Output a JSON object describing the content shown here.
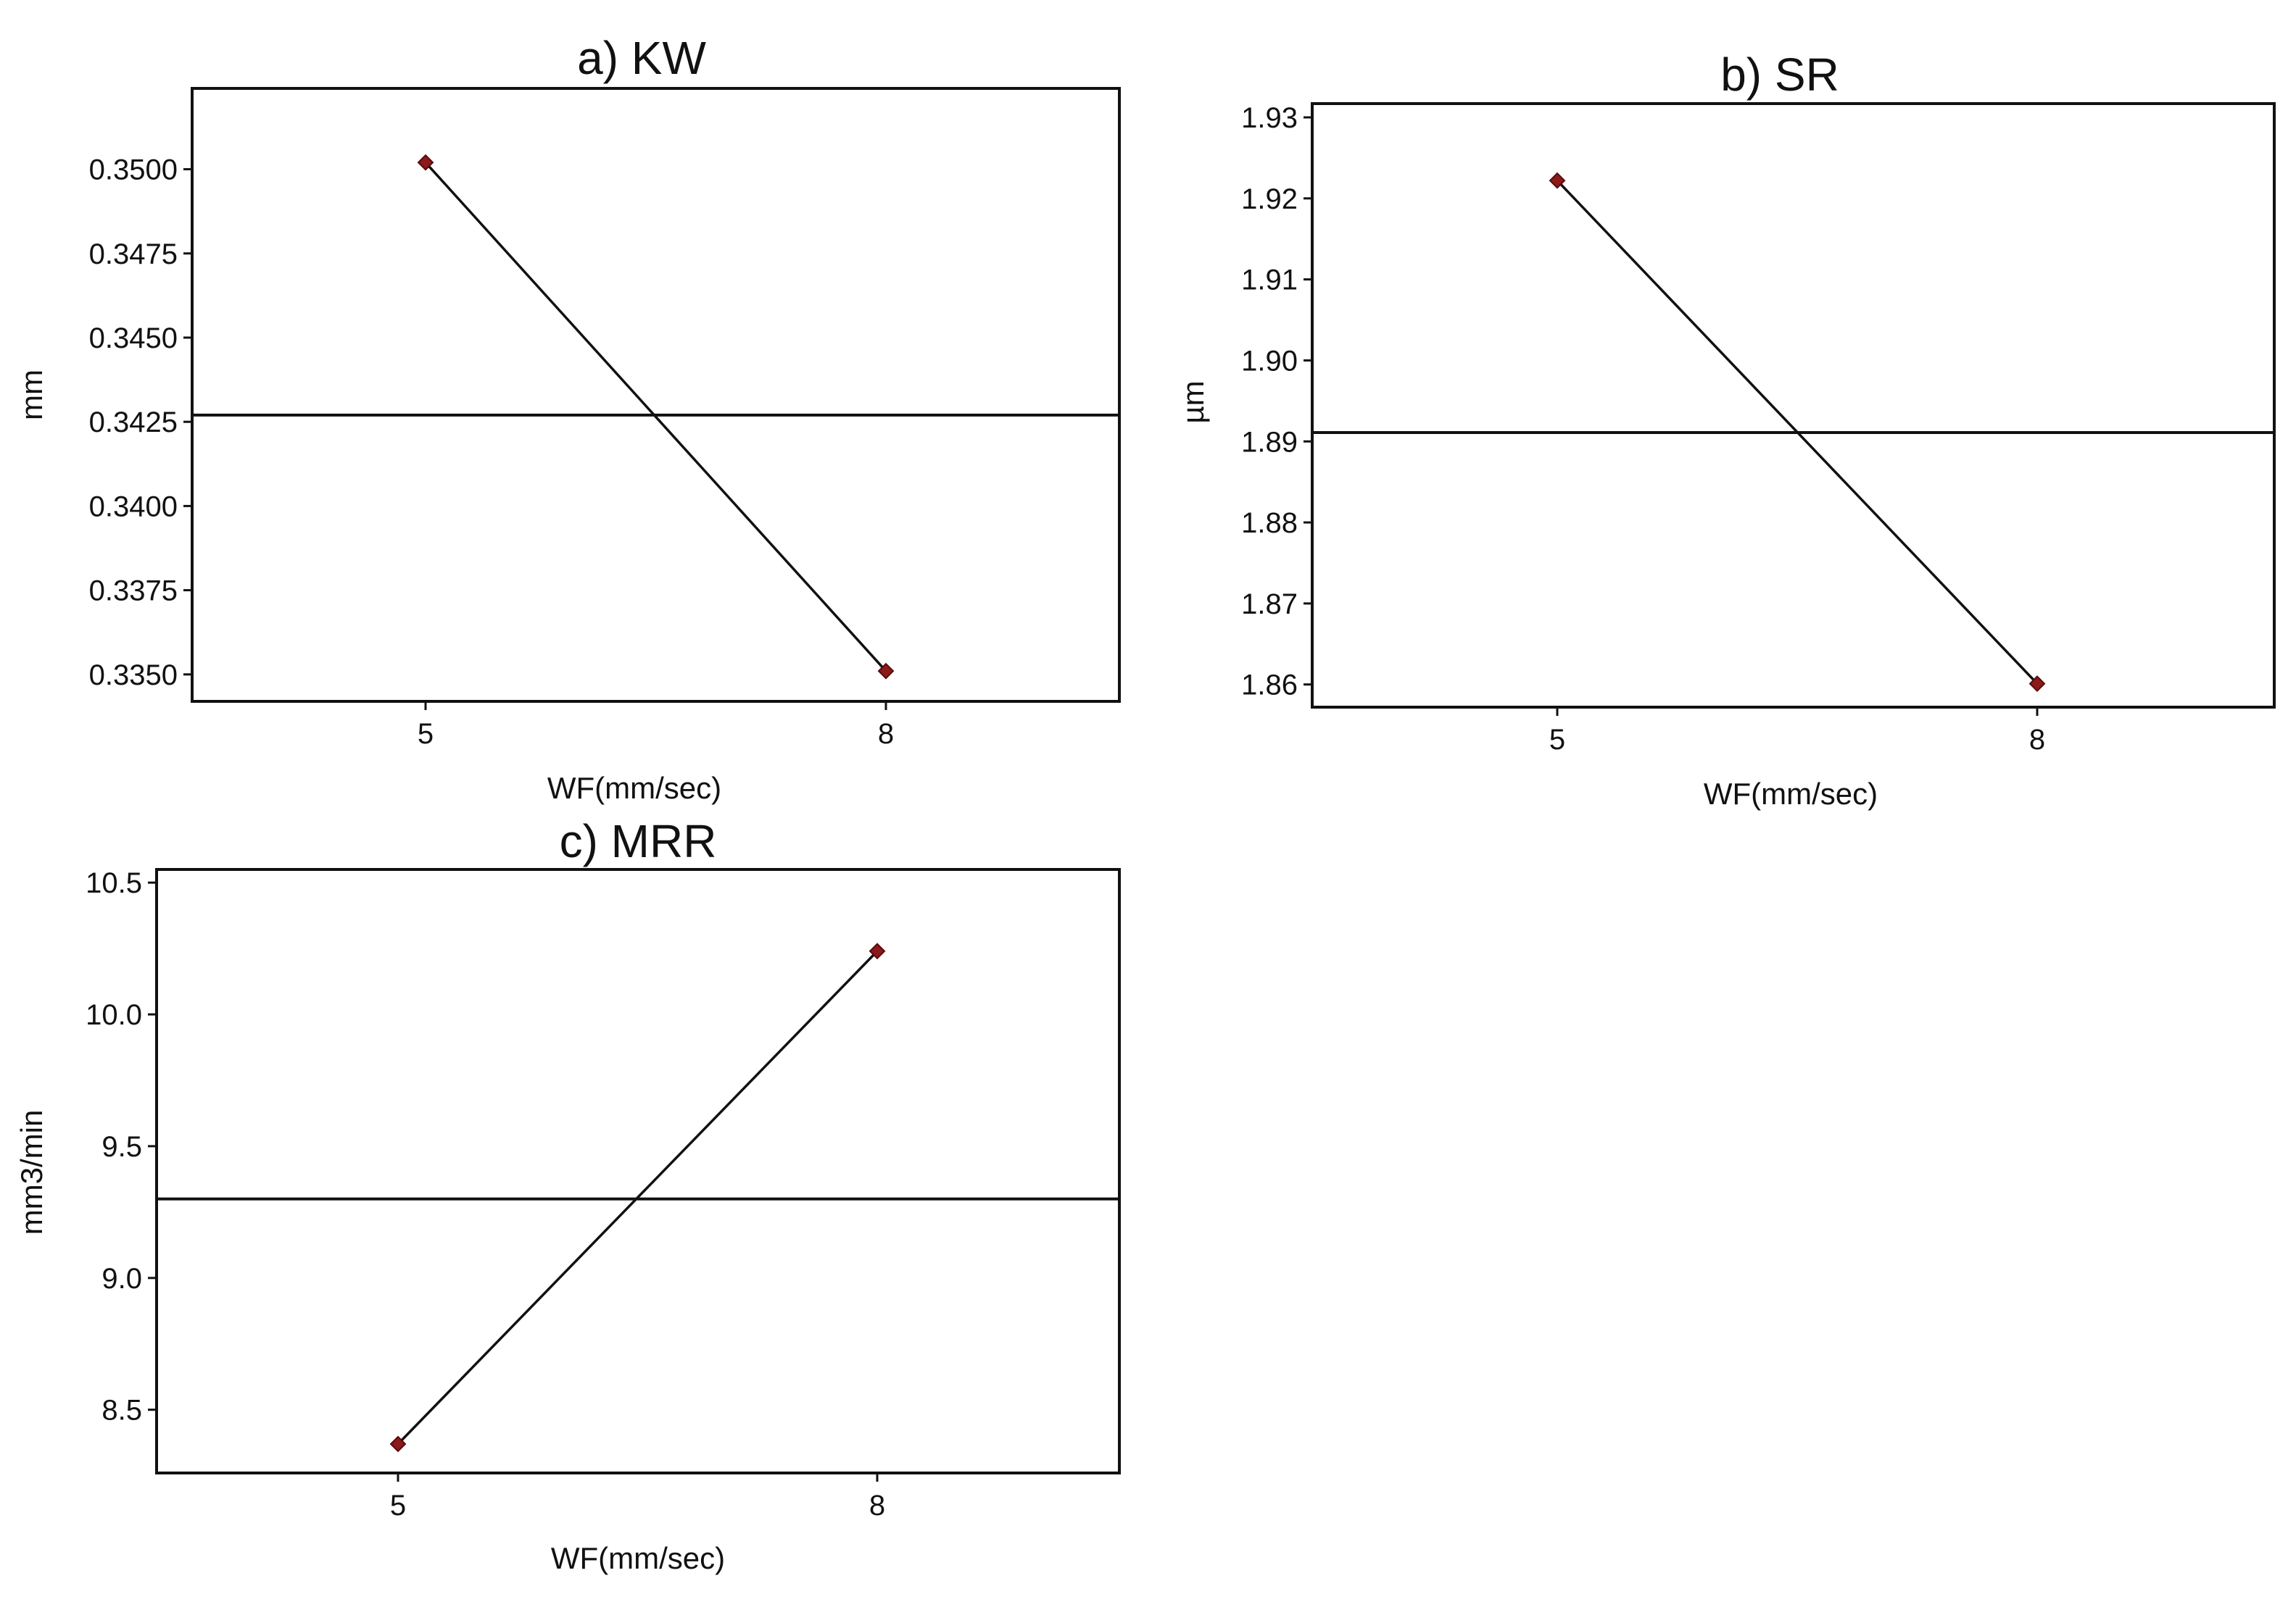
{
  "chart_data": [
    {
      "id": "kw",
      "type": "line",
      "title": "a) KW",
      "xlabel": "WF(mm/sec)",
      "ylabel": "mm",
      "x": [
        5,
        8
      ],
      "x_tick_labels": [
        "5",
        "8"
      ],
      "values": [
        0.3502,
        0.3351
      ],
      "mean": 0.3427,
      "ylim": [
        0.3342,
        0.3524
      ],
      "y_ticks": [
        0.335,
        0.3375,
        0.34,
        0.3425,
        0.345,
        0.3475,
        0.35
      ],
      "y_tick_labels": [
        "0.3350",
        "0.3375",
        "0.3400",
        "0.3425",
        "0.3450",
        "0.3475",
        "0.3500"
      ],
      "grid": false,
      "marker_color": "#8b1a1a",
      "line_color": "#111111"
    },
    {
      "id": "sr",
      "type": "line",
      "title": "b) SR",
      "xlabel": "WF(mm/sec)",
      "ylabel": "µm",
      "x": [
        5,
        8
      ],
      "x_tick_labels": [
        "5",
        "8"
      ],
      "values": [
        1.9222,
        1.8601
      ],
      "mean": 1.8911,
      "ylim": [
        1.8572,
        1.9317
      ],
      "y_ticks": [
        1.86,
        1.87,
        1.88,
        1.89,
        1.9,
        1.91,
        1.92,
        1.93
      ],
      "y_tick_labels": [
        "1.86",
        "1.87",
        "1.88",
        "1.89",
        "1.90",
        "1.91",
        "1.92",
        "1.93"
      ],
      "grid": false,
      "marker_color": "#8b1a1a",
      "line_color": "#111111"
    },
    {
      "id": "mrr",
      "type": "line",
      "title": "c) MRR",
      "xlabel": "WF(mm/sec)",
      "ylabel": "mm3/min",
      "x": [
        5,
        8
      ],
      "x_tick_labels": [
        "5",
        "8"
      ],
      "values": [
        8.37,
        10.24
      ],
      "mean": 9.3,
      "ylim": [
        8.26,
        10.55
      ],
      "y_ticks": [
        8.5,
        9.0,
        9.5,
        10.0,
        10.5
      ],
      "y_tick_labels": [
        "8.5",
        "9.0",
        "9.5",
        "10.0",
        "10.5"
      ],
      "grid": false,
      "marker_color": "#8b1a1a",
      "line_color": "#111111"
    }
  ]
}
